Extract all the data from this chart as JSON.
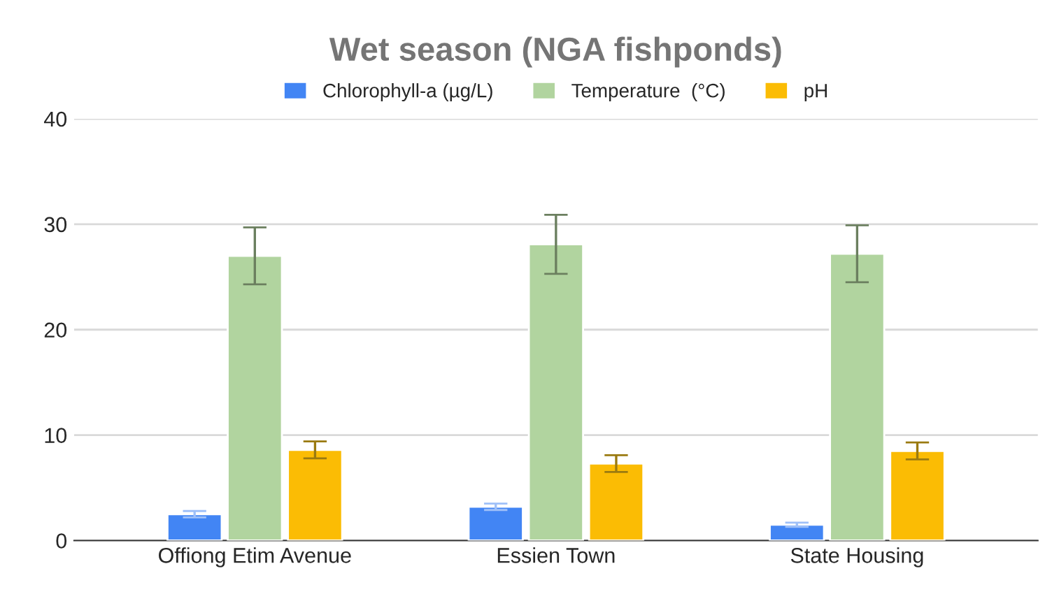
{
  "chart_data": {
    "type": "bar",
    "title": "Wet season (NGA fishponds)",
    "categories": [
      "Offiong Etim Avenue",
      "Essien Town",
      "State Housing"
    ],
    "series": [
      {
        "name": "Chlorophyll-a (µg/L)",
        "color": "#4285f4",
        "values": [
          2.5,
          3.2,
          1.5
        ],
        "errors": [
          0.3,
          0.3,
          0.2
        ]
      },
      {
        "name": "Temperature  (°C)",
        "color": "#b1d49f",
        "values": [
          27.0,
          28.1,
          27.2
        ],
        "errors": [
          2.7,
          2.8,
          2.7
        ]
      },
      {
        "name": "pH",
        "color": "#fbbc04",
        "values": [
          8.6,
          7.3,
          8.5
        ],
        "errors": [
          0.8,
          0.8,
          0.8
        ]
      }
    ],
    "ylim": [
      0,
      40
    ],
    "yticks": [
      0,
      10,
      20,
      30,
      40
    ],
    "grid": "y",
    "legend": "top"
  }
}
